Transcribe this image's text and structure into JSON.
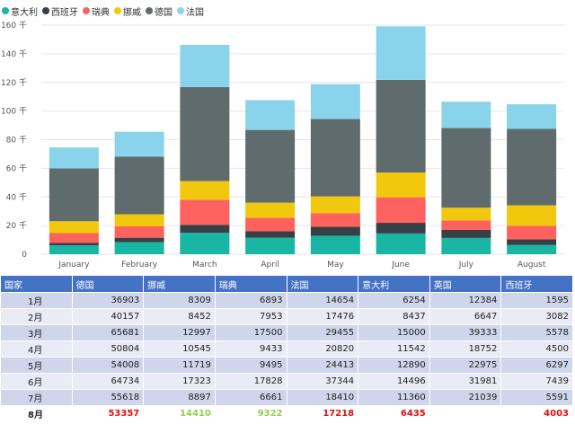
{
  "chart_data": {
    "type": "bar",
    "stacked": true,
    "categories": [
      "January",
      "February",
      "March",
      "April",
      "May",
      "June",
      "July",
      "August"
    ],
    "series": [
      {
        "name": "意大利",
        "color": "#19b7a3",
        "values": [
          6254,
          8437,
          15000,
          11542,
          12890,
          14496,
          11360,
          6435
        ]
      },
      {
        "name": "西班牙",
        "color": "#374047",
        "values": [
          1595,
          3082,
          5578,
          4500,
          6297,
          7439,
          5591,
          4003
        ]
      },
      {
        "name": "瑞典",
        "color": "#fd625e",
        "values": [
          6893,
          7953,
          17500,
          9433,
          9495,
          17828,
          6661,
          9322
        ]
      },
      {
        "name": "挪威",
        "color": "#f2c80f",
        "values": [
          8309,
          8452,
          12997,
          10545,
          11719,
          17323,
          8897,
          14410
        ]
      },
      {
        "name": "德国",
        "color": "#5f6b6d",
        "values": [
          36903,
          40157,
          65681,
          50804,
          54008,
          64734,
          55618,
          53357
        ]
      },
      {
        "name": "法国",
        "color": "#8ad4eb",
        "values": [
          14654,
          17476,
          29455,
          20820,
          24413,
          37344,
          18410,
          17218
        ]
      }
    ],
    "ylim": [
      0,
      160000
    ],
    "yticks": [
      0,
      20000,
      40000,
      60000,
      80000,
      100000,
      120000,
      140000,
      160000
    ],
    "ytick_labels": [
      "0",
      "20 千",
      "40 千",
      "60 千",
      "80 千",
      "100 千",
      "120 千",
      "140 千",
      "160 千"
    ],
    "legend": "top-left",
    "grid": true
  },
  "table": {
    "headers": [
      "国家",
      "德国",
      "挪威",
      "瑞典",
      "法国",
      "意大利",
      "英国",
      "西班牙"
    ],
    "rows": [
      {
        "label": "1月",
        "values": [
          "36903",
          "8309",
          "6893",
          "14654",
          "6254",
          "12384",
          "1595"
        ]
      },
      {
        "label": "2月",
        "values": [
          "40157",
          "8452",
          "7953",
          "17476",
          "8437",
          "6647",
          "3082"
        ]
      },
      {
        "label": "3月",
        "values": [
          "65681",
          "12997",
          "17500",
          "29455",
          "15000",
          "39333",
          "5578"
        ]
      },
      {
        "label": "4月",
        "values": [
          "50804",
          "10545",
          "9433",
          "20820",
          "11542",
          "18752",
          "4500"
        ]
      },
      {
        "label": "5月",
        "values": [
          "54008",
          "11719",
          "9495",
          "24413",
          "12890",
          "22975",
          "6297"
        ]
      },
      {
        "label": "6月",
        "values": [
          "64734",
          "17323",
          "17828",
          "37344",
          "14496",
          "31981",
          "7439"
        ]
      },
      {
        "label": "7月",
        "values": [
          "55618",
          "8897",
          "6661",
          "18410",
          "11360",
          "21039",
          "5591"
        ]
      },
      {
        "label": "8月",
        "values": [
          "53357",
          "14410",
          "9322",
          "17218",
          "6435",
          "",
          "4003"
        ]
      }
    ],
    "last_row_colors": [
      "#e01010",
      "#8fd14f",
      "#8fd14f",
      "#e01010",
      "#e01010",
      "#e01010",
      "#e01010"
    ]
  }
}
